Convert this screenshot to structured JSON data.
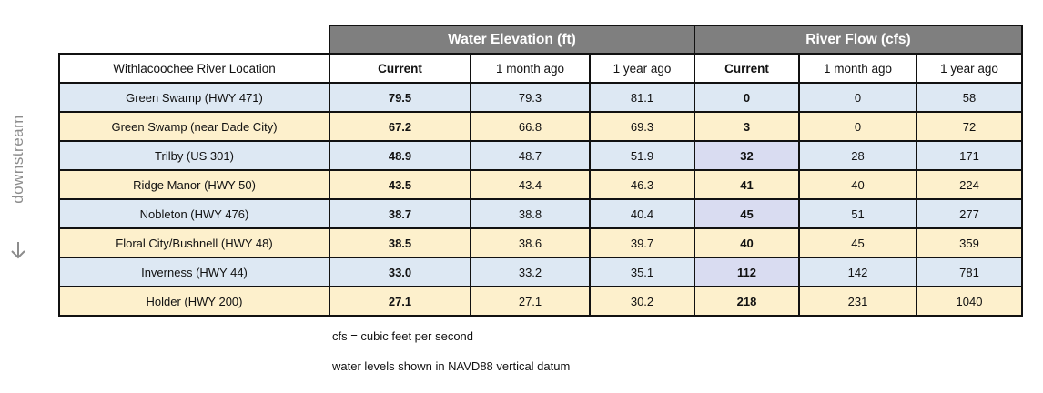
{
  "side_label": "downstream",
  "side_arrow_icon": "arrow-down-icon",
  "chart_data": {
    "type": "table",
    "group_headers": [
      "Water Elevation (ft)",
      "River Flow (cfs)"
    ],
    "columns": [
      "Withlacoochee River Location",
      "Current",
      "1 month ago",
      "1 year ago",
      "Current",
      "1 month ago",
      "1 year ago"
    ],
    "row_colors": [
      "#dde8f3",
      "#fdf0cc"
    ],
    "highlight_color": "#d9dcf1",
    "rows": [
      {
        "location": "Green Swamp (HWY 471)",
        "elev_current": "79.5",
        "elev_month": "79.3",
        "elev_year": "81.1",
        "flow_current": "0",
        "flow_month": "0",
        "flow_year": "58"
      },
      {
        "location": "Green Swamp (near Dade City)",
        "elev_current": "67.2",
        "elev_month": "66.8",
        "elev_year": "69.3",
        "flow_current": "3",
        "flow_month": "0",
        "flow_year": "72"
      },
      {
        "location": "Trilby (US 301)",
        "elev_current": "48.9",
        "elev_month": "48.7",
        "elev_year": "51.9",
        "flow_current": "32",
        "flow_month": "28",
        "flow_year": "171"
      },
      {
        "location": "Ridge Manor (HWY 50)",
        "elev_current": "43.5",
        "elev_month": "43.4",
        "elev_year": "46.3",
        "flow_current": "41",
        "flow_month": "40",
        "flow_year": "224"
      },
      {
        "location": "Nobleton (HWY 476)",
        "elev_current": "38.7",
        "elev_month": "38.8",
        "elev_year": "40.4",
        "flow_current": "45",
        "flow_month": "51",
        "flow_year": "277"
      },
      {
        "location": "Floral City/Bushnell (HWY 48)",
        "elev_current": "38.5",
        "elev_month": "38.6",
        "elev_year": "39.7",
        "flow_current": "40",
        "flow_month": "45",
        "flow_year": "359"
      },
      {
        "location": "Inverness (HWY 44)",
        "elev_current": "33.0",
        "elev_month": "33.2",
        "elev_year": "35.1",
        "flow_current": "112",
        "flow_month": "142",
        "flow_year": "781"
      },
      {
        "location": "Holder (HWY 200)",
        "elev_current": "27.1",
        "elev_month": "27.1",
        "elev_year": "30.2",
        "flow_current": "218",
        "flow_month": "231",
        "flow_year": "1040"
      }
    ],
    "highlighted_cells": [
      {
        "row": 2,
        "column": "flow_current"
      },
      {
        "row": 4,
        "column": "flow_current"
      },
      {
        "row": 6,
        "column": "flow_current"
      }
    ]
  },
  "notes": [
    "cfs = cubic feet per second",
    "water levels shown in NAVD88 vertical datum"
  ]
}
